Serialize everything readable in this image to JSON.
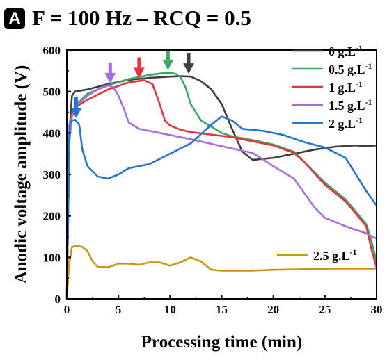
{
  "panel": {
    "letter": "A"
  },
  "chart_data": {
    "type": "line",
    "title": "F = 100 Hz – RCQ = 0.5",
    "xlabel": "Processing time (min)",
    "ylabel": "Anodic voltage amplitude (V)",
    "xlim": [
      0,
      30
    ],
    "ylim": [
      0,
      600
    ],
    "x_ticks": [
      "0",
      "5",
      "10",
      "15",
      "20",
      "25",
      "30"
    ],
    "y_ticks": [
      "0",
      "100",
      "200",
      "300",
      "400",
      "500",
      "600"
    ],
    "grid": false,
    "legend_position": "top-right",
    "series": [
      {
        "name": "0 g.L-1",
        "legend_main": "0 g.L",
        "legend_sup": "-1",
        "color": "#3f3f3f",
        "points": [
          [
            0,
            0
          ],
          [
            0.25,
            400
          ],
          [
            0.5,
            490
          ],
          [
            0.8,
            500
          ],
          [
            2,
            505
          ],
          [
            4,
            518
          ],
          [
            6,
            528
          ],
          [
            8,
            533
          ],
          [
            10,
            536
          ],
          [
            11,
            537
          ],
          [
            12,
            536
          ],
          [
            13,
            525
          ],
          [
            14,
            505
          ],
          [
            15,
            470
          ],
          [
            16,
            410
          ],
          [
            17,
            355
          ],
          [
            18,
            335
          ],
          [
            20,
            340
          ],
          [
            22,
            350
          ],
          [
            24,
            360
          ],
          [
            26,
            367
          ],
          [
            28,
            370
          ],
          [
            29,
            368
          ],
          [
            30,
            370
          ]
        ],
        "arrow_x": 11.8
      },
      {
        "name": "0.5 g.L-1",
        "legend_main": "0.5 g.L",
        "legend_sup": "-1",
        "color": "#3aa763",
        "points": [
          [
            0,
            0
          ],
          [
            0.25,
            380
          ],
          [
            0.5,
            440
          ],
          [
            1,
            470
          ],
          [
            2,
            495
          ],
          [
            4,
            515
          ],
          [
            6,
            530
          ],
          [
            8,
            540
          ],
          [
            9.5,
            545
          ],
          [
            10,
            545
          ],
          [
            10.5,
            543
          ],
          [
            11,
            535
          ],
          [
            11.5,
            510
          ],
          [
            12,
            470
          ],
          [
            13,
            430
          ],
          [
            14,
            415
          ],
          [
            15,
            400
          ],
          [
            16,
            392
          ],
          [
            18,
            383
          ],
          [
            20,
            372
          ],
          [
            22,
            355
          ],
          [
            23,
            330
          ],
          [
            25,
            280
          ],
          [
            27,
            240
          ],
          [
            29,
            180
          ],
          [
            29.5,
            140
          ],
          [
            30,
            90
          ]
        ],
        "arrow_x": 9.8
      },
      {
        "name": "1 g.L-1",
        "legend_main": "1 g.L",
        "legend_sup": "-1",
        "color": "#e3353d",
        "points": [
          [
            0,
            0
          ],
          [
            0.25,
            390
          ],
          [
            0.5,
            450
          ],
          [
            1,
            465
          ],
          [
            2,
            480
          ],
          [
            4,
            505
          ],
          [
            6,
            522
          ],
          [
            7.5,
            527
          ],
          [
            8.3,
            518
          ],
          [
            9,
            470
          ],
          [
            9.5,
            430
          ],
          [
            10,
            418
          ],
          [
            11,
            408
          ],
          [
            12,
            402
          ],
          [
            14,
            396
          ],
          [
            16,
            390
          ],
          [
            18,
            380
          ],
          [
            20,
            370
          ],
          [
            22,
            352
          ],
          [
            23,
            330
          ],
          [
            25,
            275
          ],
          [
            27,
            235
          ],
          [
            29,
            175
          ],
          [
            29.5,
            120
          ],
          [
            30,
            75
          ]
        ],
        "arrow_x": 7.0
      },
      {
        "name": "1.5 g.L-1",
        "legend_main": "1.5 g.L",
        "legend_sup": "-1",
        "color": "#a56de2",
        "points": [
          [
            0,
            0
          ],
          [
            0.25,
            380
          ],
          [
            0.5,
            440
          ],
          [
            1,
            468
          ],
          [
            2,
            490
          ],
          [
            3,
            505
          ],
          [
            4,
            515
          ],
          [
            4.5,
            510
          ],
          [
            5,
            490
          ],
          [
            5.5,
            460
          ],
          [
            6,
            425
          ],
          [
            7,
            410
          ],
          [
            9,
            400
          ],
          [
            12,
            385
          ],
          [
            15,
            368
          ],
          [
            18,
            352
          ],
          [
            20,
            320
          ],
          [
            22,
            290
          ],
          [
            23,
            255
          ],
          [
            24,
            220
          ],
          [
            25,
            195
          ],
          [
            27,
            175
          ],
          [
            29,
            158
          ],
          [
            30,
            145
          ]
        ],
        "arrow_x": 4.2
      },
      {
        "name": "2 g.L-1",
        "legend_main": "2 g.L",
        "legend_sup": "-1",
        "color": "#2474d3",
        "points": [
          [
            0,
            0
          ],
          [
            0.25,
            420
          ],
          [
            0.5,
            430
          ],
          [
            0.8,
            432
          ],
          [
            1.2,
            420
          ],
          [
            1.5,
            360
          ],
          [
            2,
            320
          ],
          [
            3,
            295
          ],
          [
            4,
            290
          ],
          [
            5,
            300
          ],
          [
            6,
            315
          ],
          [
            8,
            325
          ],
          [
            10,
            350
          ],
          [
            12,
            375
          ],
          [
            14,
            420
          ],
          [
            15,
            440
          ],
          [
            16,
            430
          ],
          [
            17,
            410
          ],
          [
            19,
            405
          ],
          [
            21,
            395
          ],
          [
            23,
            378
          ],
          [
            25,
            365
          ],
          [
            27,
            340
          ],
          [
            28,
            300
          ],
          [
            29,
            260
          ],
          [
            30,
            225
          ]
        ],
        "arrow_x": 0.9
      },
      {
        "name": "2.5 g.L-1",
        "legend_main": "2.5 g.L",
        "legend_sup": "-1",
        "color": "#c8960f",
        "points": [
          [
            0,
            0
          ],
          [
            0.2,
            80
          ],
          [
            0.5,
            125
          ],
          [
            1,
            128
          ],
          [
            1.5,
            125
          ],
          [
            2,
            115
          ],
          [
            2.5,
            90
          ],
          [
            3,
            77
          ],
          [
            4,
            76
          ],
          [
            5,
            85
          ],
          [
            6,
            85
          ],
          [
            7,
            82
          ],
          [
            8,
            88
          ],
          [
            9,
            88
          ],
          [
            10,
            80
          ],
          [
            11,
            88
          ],
          [
            12,
            100
          ],
          [
            13,
            90
          ],
          [
            14,
            70
          ],
          [
            15,
            68
          ],
          [
            18,
            68
          ],
          [
            20,
            70
          ],
          [
            24,
            72
          ],
          [
            26,
            73
          ],
          [
            30,
            73
          ]
        ],
        "label_near_line": true
      }
    ]
  }
}
